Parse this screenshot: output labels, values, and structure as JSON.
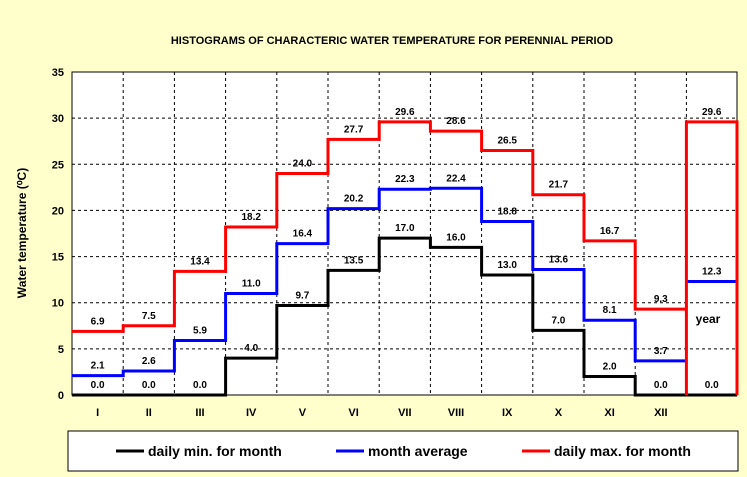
{
  "chart_data": {
    "type": "line",
    "title": "HISTOGRAMS  OF CHARACTERIC  WATER TEMPERATURE  FOR PERENNIAL  PERIOD",
    "xlabel": "",
    "ylabel": "Water temperature (⁰C)",
    "ylim": [
      0,
      35
    ],
    "yticks": [
      "0",
      "5",
      "10",
      "15",
      "20",
      "25",
      "30",
      "35"
    ],
    "categories": [
      "I",
      "II",
      "III",
      "IV",
      "V",
      "VI",
      "VII",
      "VIII",
      "IX",
      "X",
      "XI",
      "XII"
    ],
    "annual_label": "year",
    "step": true,
    "grid": true,
    "legend_position": "bottom",
    "series": [
      {
        "name": "daily  min. for month",
        "color": "#000000",
        "values": [
          0.0,
          0.0,
          0.0,
          4.0,
          9.7,
          13.5,
          17.0,
          16.0,
          13.0,
          7.0,
          2.0,
          0.0
        ],
        "labels": [
          "0.0",
          "0.0",
          "0.0",
          "4.0",
          "9.7",
          "13.5",
          "17.0",
          "16.0",
          "13.0",
          "7.0",
          "2.0",
          "0.0"
        ],
        "annual": 0.0,
        "annual_label": "0.0"
      },
      {
        "name": "month average",
        "color": "#0000ff",
        "values": [
          2.1,
          2.6,
          5.9,
          11.0,
          16.4,
          20.2,
          22.3,
          22.4,
          18.8,
          13.6,
          8.1,
          3.7
        ],
        "labels": [
          "2.1",
          "2.6",
          "5.9",
          "11.0",
          "16.4",
          "20.2",
          "22.3",
          "22.4",
          "18.8",
          "13.6",
          "8.1",
          "3.7"
        ],
        "annual": 12.3,
        "annual_label": "12.3"
      },
      {
        "name": "daily  max. for month",
        "color": "#ff0000",
        "values": [
          6.9,
          7.5,
          13.4,
          18.2,
          24.0,
          27.7,
          29.6,
          28.6,
          26.5,
          21.7,
          16.7,
          9.3
        ],
        "labels": [
          "6.9",
          "7.5",
          "13.4",
          "18.2",
          "24.0",
          "27.7",
          "29.6",
          "28.6",
          "26.5",
          "21.7",
          "16.7",
          "9.3"
        ],
        "annual": 29.6,
        "annual_label": "29.6"
      }
    ]
  }
}
